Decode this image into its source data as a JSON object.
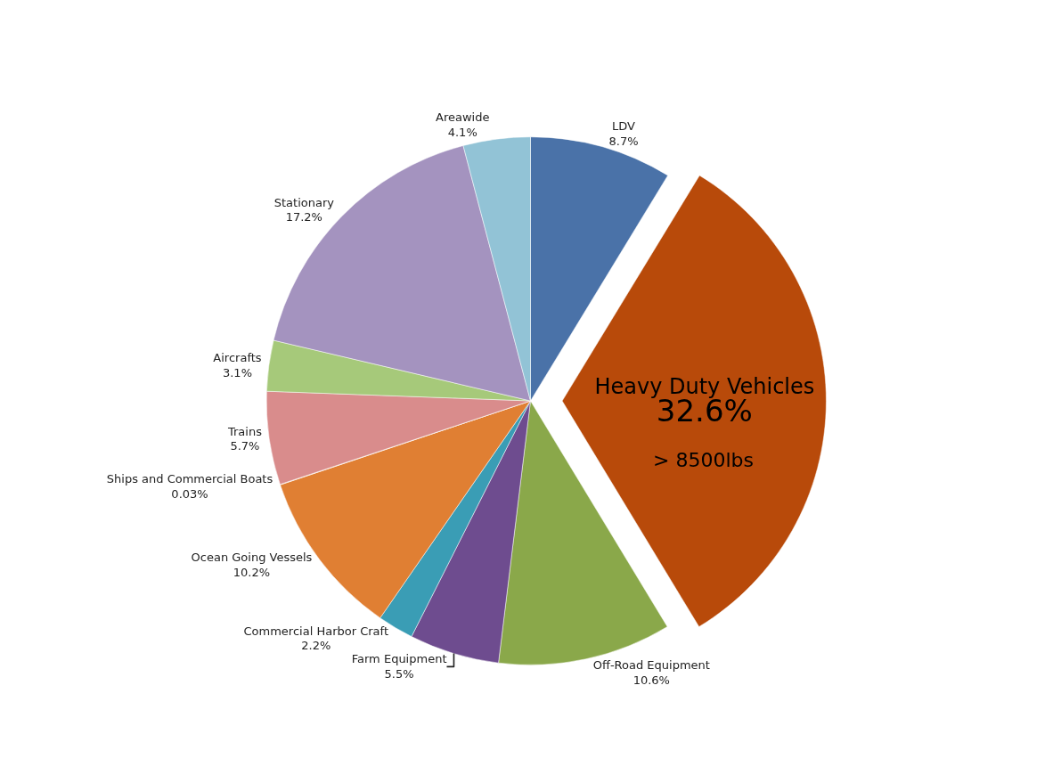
{
  "chart_data": {
    "type": "pie",
    "categories": [
      "LDV",
      "Heavy Duty Vehicles",
      "Off-Road Equipment",
      "Farm Equipment",
      "Commercial Harbor Craft",
      "Ocean Going Vessels",
      "Ships and Commercial Boats",
      "Trains",
      "Aircrafts",
      "Stationary",
      "Areawide"
    ],
    "values": [
      8.7,
      32.6,
      10.6,
      5.5,
      2.2,
      10.2,
      0.03,
      5.7,
      3.1,
      17.2,
      4.1
    ],
    "value_labels": [
      "8.7%",
      "32.6%",
      "10.6%",
      "5.5%",
      "2.2%",
      "10.2%",
      "0.03%",
      "5.7%",
      "3.1%",
      "17.2%",
      "4.1%"
    ],
    "colors": [
      "#4a72a8",
      "#b84a0a",
      "#8aa84a",
      "#6e4c8f",
      "#3a9db5",
      "#e07f33",
      "#f4c89a",
      "#d98c8c",
      "#a6c97a",
      "#a493bf",
      "#92c3d6"
    ],
    "annotations": [
      "> 8500lbs"
    ],
    "legend": false
  }
}
